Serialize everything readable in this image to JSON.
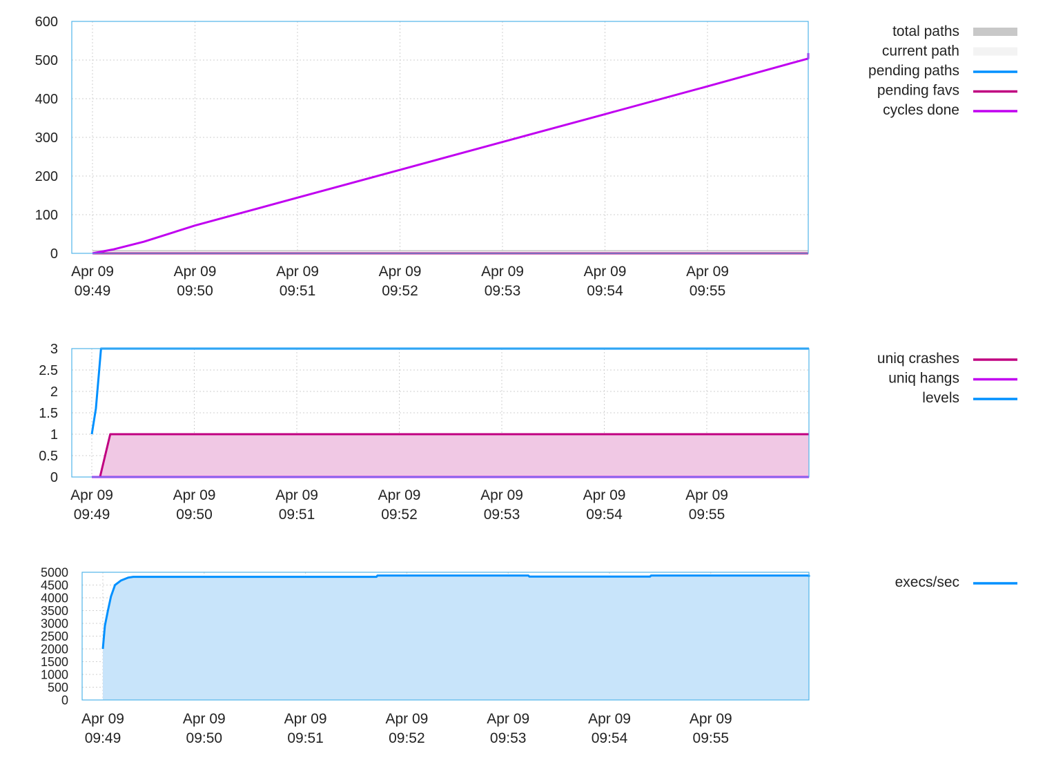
{
  "chart_data": [
    {
      "type": "line",
      "title": "",
      "xlabel": "",
      "ylabel": "",
      "ylim": [
        0,
        600
      ],
      "yticks": [
        "0",
        "100",
        "200",
        "300",
        "400",
        "500",
        "600"
      ],
      "xticks": [
        {
          "line1": "Apr 09",
          "line2": "09:49"
        },
        {
          "line1": "Apr 09",
          "line2": "09:50"
        },
        {
          "line1": "Apr 09",
          "line2": "09:51"
        },
        {
          "line1": "Apr 09",
          "line2": "09:52"
        },
        {
          "line1": "Apr 09",
          "line2": "09:53"
        },
        {
          "line1": "Apr 09",
          "line2": "09:54"
        },
        {
          "line1": "Apr 09",
          "line2": "09:55"
        }
      ],
      "grid": true,
      "legend_position": "right",
      "series": [
        {
          "name": "total paths",
          "style": "area",
          "color": "#c8c8c8",
          "x": [
            0,
            7.2
          ],
          "values": [
            3,
            3
          ]
        },
        {
          "name": "current path",
          "style": "area",
          "color": "#f3f3f3",
          "x": [
            0,
            7.2
          ],
          "values": [
            0,
            0
          ]
        },
        {
          "name": "pending paths",
          "style": "line",
          "color": "#0090ff",
          "x": [
            0,
            7.2
          ],
          "values": [
            0,
            0
          ]
        },
        {
          "name": "pending favs",
          "style": "line",
          "color": "#c00080",
          "x": [
            0,
            7.2
          ],
          "values": [
            0,
            0
          ]
        },
        {
          "name": "cycles done",
          "style": "line",
          "color": "#c000f0",
          "x": [
            0,
            0.2,
            0.5,
            1,
            2,
            3,
            4,
            5,
            6,
            7,
            7.2
          ],
          "values": [
            0,
            10,
            30,
            72,
            144,
            216,
            288,
            360,
            432,
            504,
            518
          ]
        }
      ]
    },
    {
      "type": "line",
      "title": "",
      "xlabel": "",
      "ylabel": "",
      "ylim": [
        0,
        3
      ],
      "yticks": [
        "0",
        "0.5",
        "1",
        "1.5",
        "2",
        "2.5",
        "3"
      ],
      "xticks": [
        {
          "line1": "Apr 09",
          "line2": "09:49"
        },
        {
          "line1": "Apr 09",
          "line2": "09:50"
        },
        {
          "line1": "Apr 09",
          "line2": "09:51"
        },
        {
          "line1": "Apr 09",
          "line2": "09:52"
        },
        {
          "line1": "Apr 09",
          "line2": "09:53"
        },
        {
          "line1": "Apr 09",
          "line2": "09:54"
        },
        {
          "line1": "Apr 09",
          "line2": "09:55"
        }
      ],
      "grid": true,
      "legend_position": "right",
      "series": [
        {
          "name": "uniq crashes",
          "style": "filled-line",
          "color": "#c00080",
          "fill": "#f0c8e4",
          "x": [
            0,
            0.08,
            0.18,
            7.2
          ],
          "values": [
            0,
            0,
            1,
            1
          ]
        },
        {
          "name": "uniq hangs",
          "style": "line",
          "color": "#c000f0",
          "x": [
            0,
            7.2
          ],
          "values": [
            0,
            0
          ]
        },
        {
          "name": "levels",
          "style": "line",
          "color": "#0090ff",
          "x": [
            0,
            0.04,
            0.09,
            7.2
          ],
          "values": [
            1,
            1.6,
            3,
            3
          ]
        }
      ]
    },
    {
      "type": "area",
      "title": "",
      "xlabel": "",
      "ylabel": "",
      "ylim": [
        0,
        5000
      ],
      "yticks": [
        "0",
        "500",
        "1000",
        "1500",
        "2000",
        "2500",
        "3000",
        "3500",
        "4000",
        "4500",
        "5000"
      ],
      "xticks": [
        {
          "line1": "Apr 09",
          "line2": "09:49"
        },
        {
          "line1": "Apr 09",
          "line2": "09:50"
        },
        {
          "line1": "Apr 09",
          "line2": "09:51"
        },
        {
          "line1": "Apr 09",
          "line2": "09:52"
        },
        {
          "line1": "Apr 09",
          "line2": "09:53"
        },
        {
          "line1": "Apr 09",
          "line2": "09:54"
        },
        {
          "line1": "Apr 09",
          "line2": "09:55"
        }
      ],
      "grid": true,
      "legend_position": "right",
      "series": [
        {
          "name": "execs/sec",
          "style": "filled-line",
          "color": "#0090ff",
          "fill": "#c8e4fa",
          "x": [
            0,
            0.02,
            0.05,
            0.08,
            0.12,
            0.18,
            0.25,
            0.3,
            0.4,
            2.7,
            2.71,
            4.2,
            4.21,
            5.4,
            5.41,
            7.1,
            7.11,
            7.2
          ],
          "values": [
            2000,
            2900,
            3500,
            4050,
            4500,
            4680,
            4790,
            4820,
            4820,
            4820,
            4870,
            4870,
            4830,
            4830,
            4870,
            4870,
            4820,
            4820
          ]
        }
      ]
    }
  ]
}
